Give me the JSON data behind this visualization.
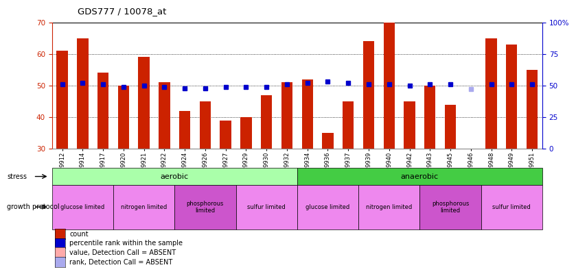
{
  "title": "GDS777 / 10078_at",
  "samples": [
    "GSM29912",
    "GSM29914",
    "GSM29917",
    "GSM29920",
    "GSM29921",
    "GSM29922",
    "GSM29924",
    "GSM29926",
    "GSM29927",
    "GSM29929",
    "GSM29930",
    "GSM29932",
    "GSM29934",
    "GSM29936",
    "GSM29937",
    "GSM29939",
    "GSM29940",
    "GSM29942",
    "GSM29943",
    "GSM29945",
    "GSM29946",
    "GSM29948",
    "GSM29949",
    "GSM29951"
  ],
  "count_values": [
    61,
    65,
    54,
    50,
    59,
    51,
    42,
    45,
    39,
    40,
    47,
    51,
    52,
    35,
    45,
    64,
    70,
    45,
    50,
    44,
    30,
    65,
    63,
    55
  ],
  "rank_values": [
    51,
    52,
    51,
    49,
    50,
    49,
    48,
    48,
    49,
    49,
    49,
    51,
    52,
    53,
    52,
    51,
    51,
    50,
    51,
    51,
    47,
    51,
    51,
    51
  ],
  "absent_count_idx": 20,
  "absent_count_val": 30,
  "absent_rank_idx": 20,
  "absent_rank_val": 47,
  "ylim_left": [
    30,
    70
  ],
  "ylim_right": [
    0,
    100
  ],
  "left_ticks": [
    30,
    40,
    50,
    60,
    70
  ],
  "right_ticks": [
    0,
    25,
    50,
    75,
    100
  ],
  "right_tick_labels": [
    "0",
    "25",
    "50",
    "75",
    "100%"
  ],
  "gridline_y": [
    40,
    50,
    60
  ],
  "bar_color": "#cc2200",
  "rank_color": "#0000cc",
  "absent_bar_color": "#ffaaaa",
  "absent_rank_color": "#aaaaee",
  "left_axis_color": "#cc2200",
  "right_axis_color": "#0000cc",
  "stress_groups": [
    {
      "label": "aerobic",
      "start": 0,
      "end": 12,
      "color": "#aaffaa"
    },
    {
      "label": "anaerobic",
      "start": 12,
      "end": 24,
      "color": "#44cc44"
    }
  ],
  "protocol_groups": [
    {
      "label": "glucose limited",
      "start": 0,
      "end": 3,
      "color": "#ee88ee"
    },
    {
      "label": "nitrogen limited",
      "start": 3,
      "end": 6,
      "color": "#ee88ee"
    },
    {
      "label": "phosphorous\nlimited",
      "start": 6,
      "end": 9,
      "color": "#cc55cc"
    },
    {
      "label": "sulfur limited",
      "start": 9,
      "end": 12,
      "color": "#ee88ee"
    },
    {
      "label": "glucose limited",
      "start": 12,
      "end": 15,
      "color": "#ee88ee"
    },
    {
      "label": "nitrogen limited",
      "start": 15,
      "end": 18,
      "color": "#ee88ee"
    },
    {
      "label": "phosphorous\nlimited",
      "start": 18,
      "end": 21,
      "color": "#cc55cc"
    },
    {
      "label": "sulfur limited",
      "start": 21,
      "end": 24,
      "color": "#ee88ee"
    }
  ],
  "legend_items": [
    {
      "label": "count",
      "color": "#cc2200"
    },
    {
      "label": "percentile rank within the sample",
      "color": "#0000cc"
    },
    {
      "label": "value, Detection Call = ABSENT",
      "color": "#ffaaaa"
    },
    {
      "label": "rank, Detection Call = ABSENT",
      "color": "#aaaaee"
    }
  ],
  "stress_label": "stress",
  "protocol_label": "growth protocol"
}
